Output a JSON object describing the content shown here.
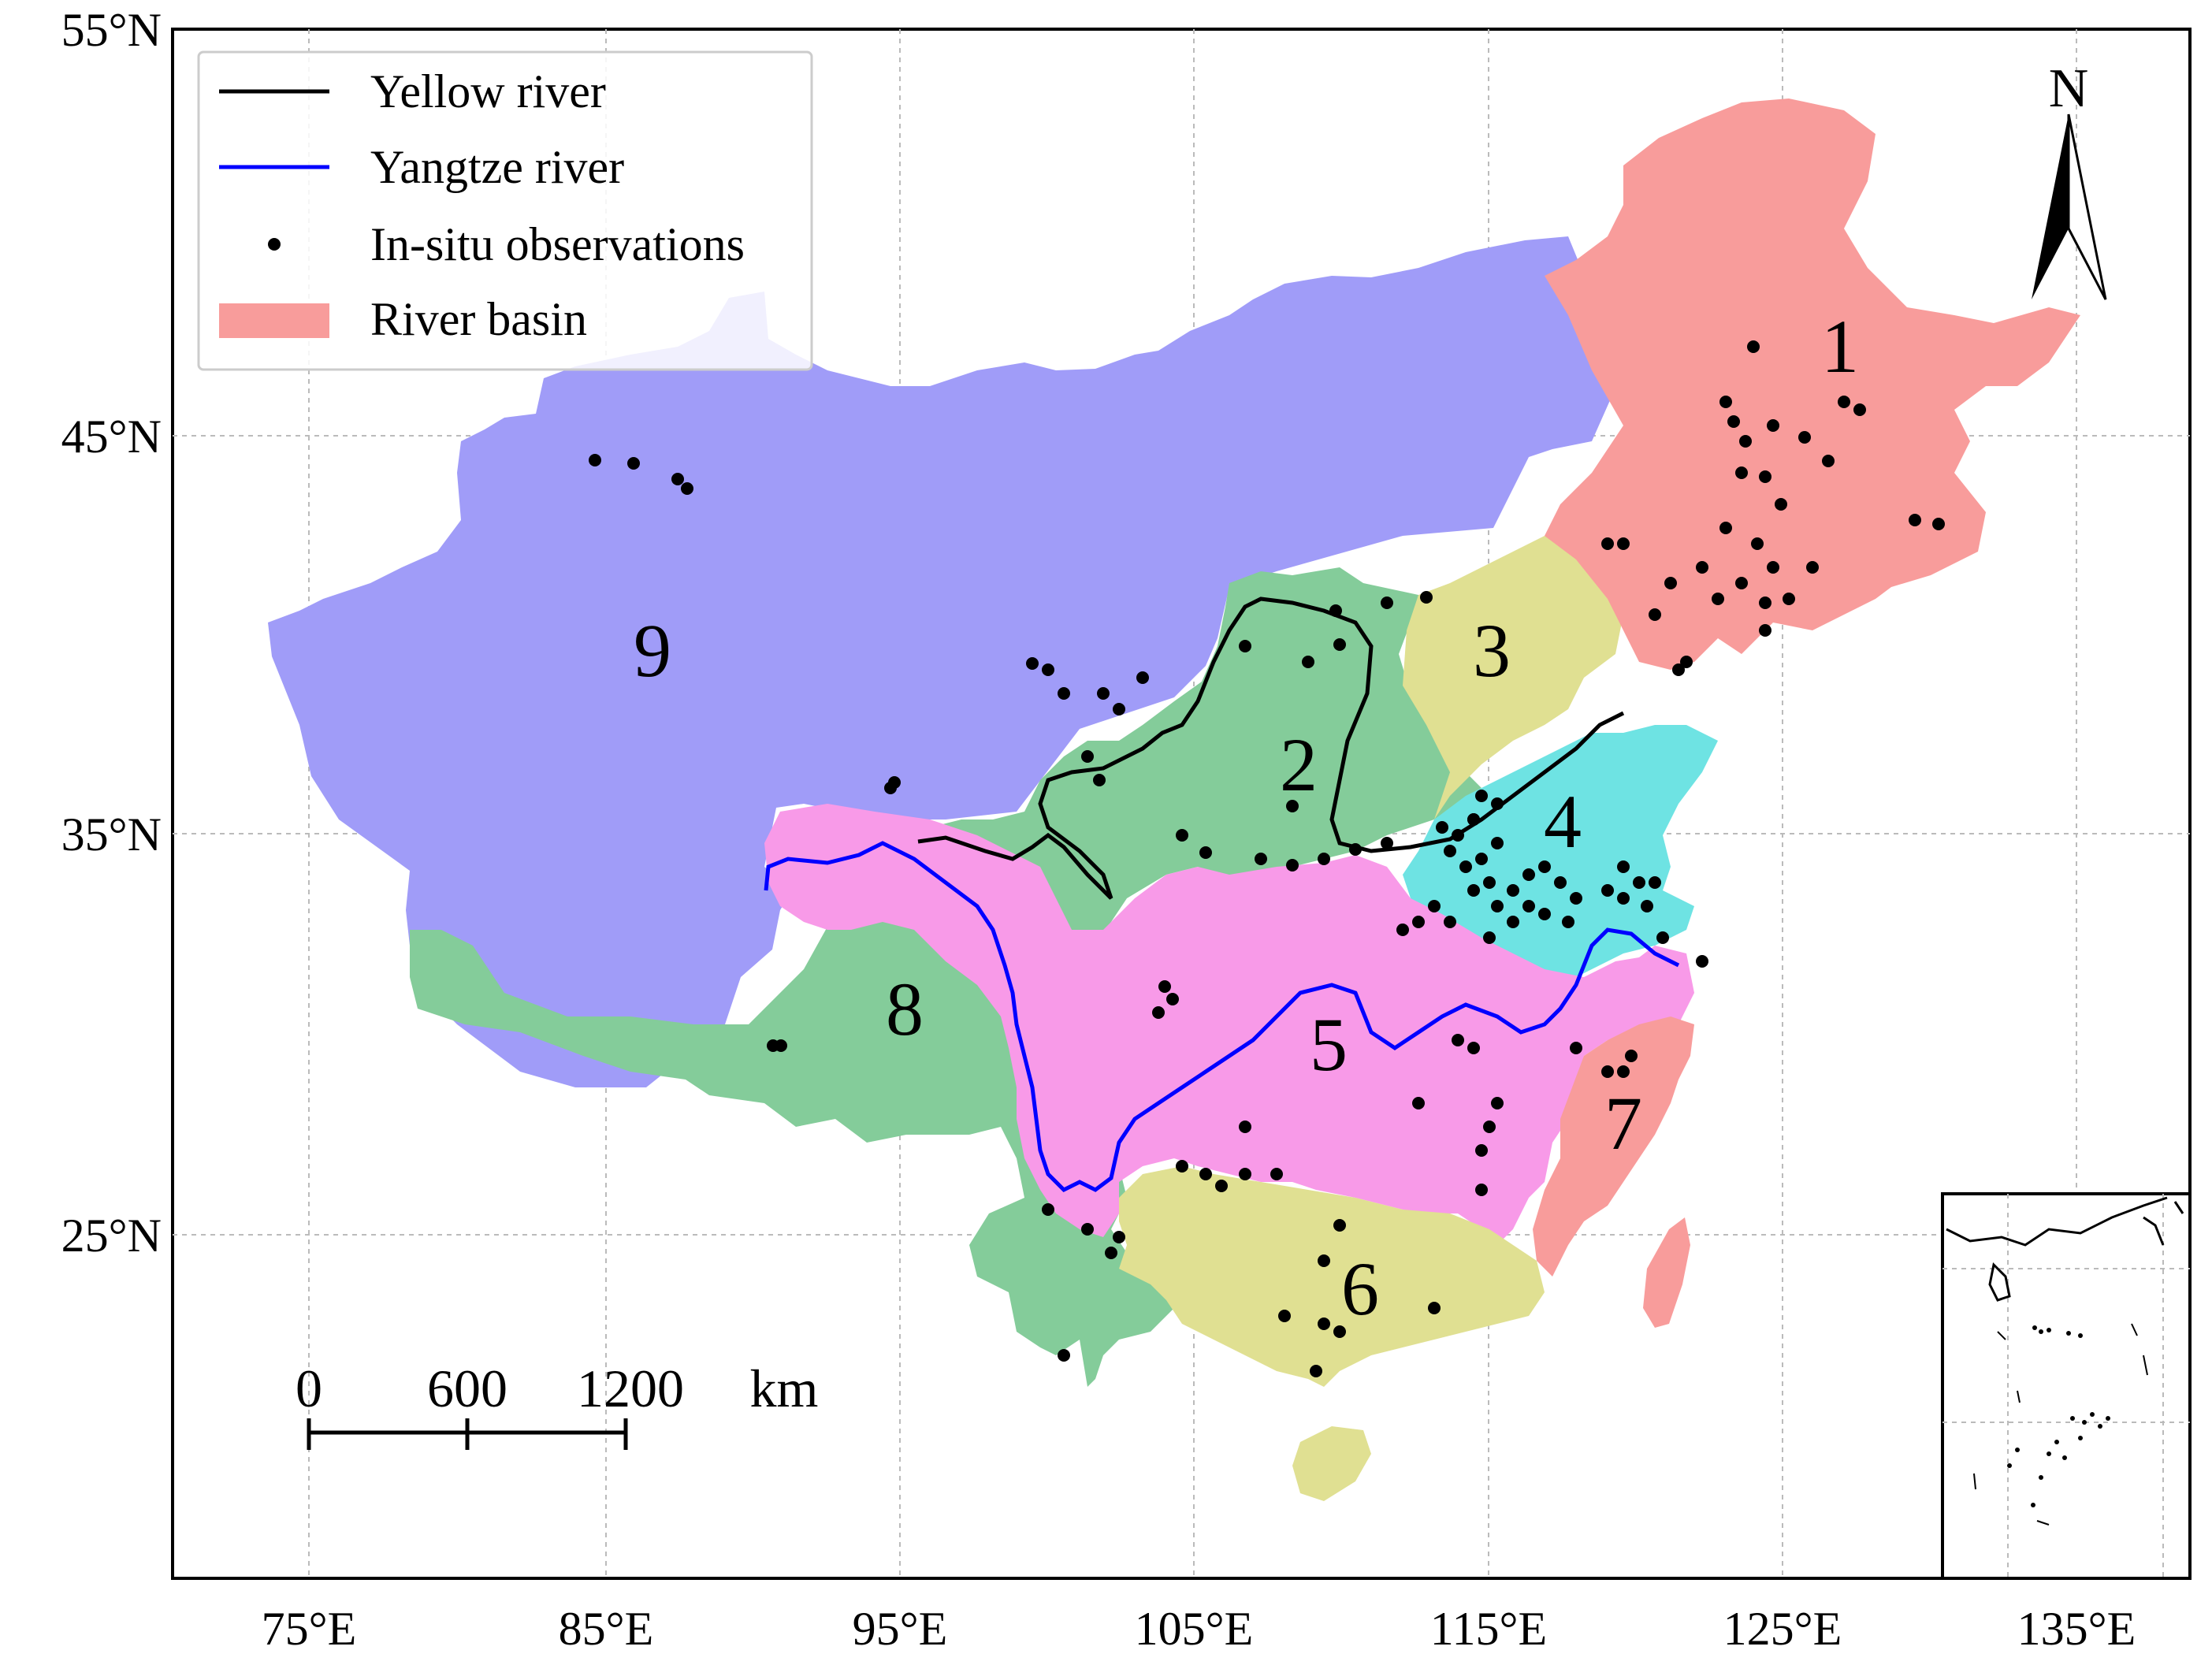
{
  "map": {
    "lat_labels": [
      "55°N",
      "45°N",
      "35°N",
      "25°N"
    ],
    "lon_labels": [
      "75°E",
      "85°E",
      "95°E",
      "105°E",
      "115°E",
      "125°E",
      "135°E"
    ],
    "legend": {
      "yellow_river": "Yellow river",
      "yangtze_river": "Yangtze river",
      "observations": "In-situ observations",
      "basin": "River basin"
    },
    "region_labels": [
      "1",
      "2",
      "3",
      "4",
      "5",
      "6",
      "7",
      "8",
      "9"
    ],
    "scale_bar": {
      "labels": [
        "0",
        "600",
        "1200"
      ],
      "unit": "km"
    },
    "north_arrow": "N",
    "colors": {
      "basin_1": "#f89c9b",
      "basin_2": "#84cc9a",
      "basin_3": "#e0e092",
      "basin_4": "#6ee3e3",
      "basin_5": "#f89ae8",
      "basin_6": "#e0e092",
      "basin_7": "#f89c9b",
      "basin_8": "#84cc9a",
      "basin_9": "#a09cf8",
      "yellow_river": "#000000",
      "yangtze_river": "#0000ff",
      "observation": "#000000"
    }
  }
}
